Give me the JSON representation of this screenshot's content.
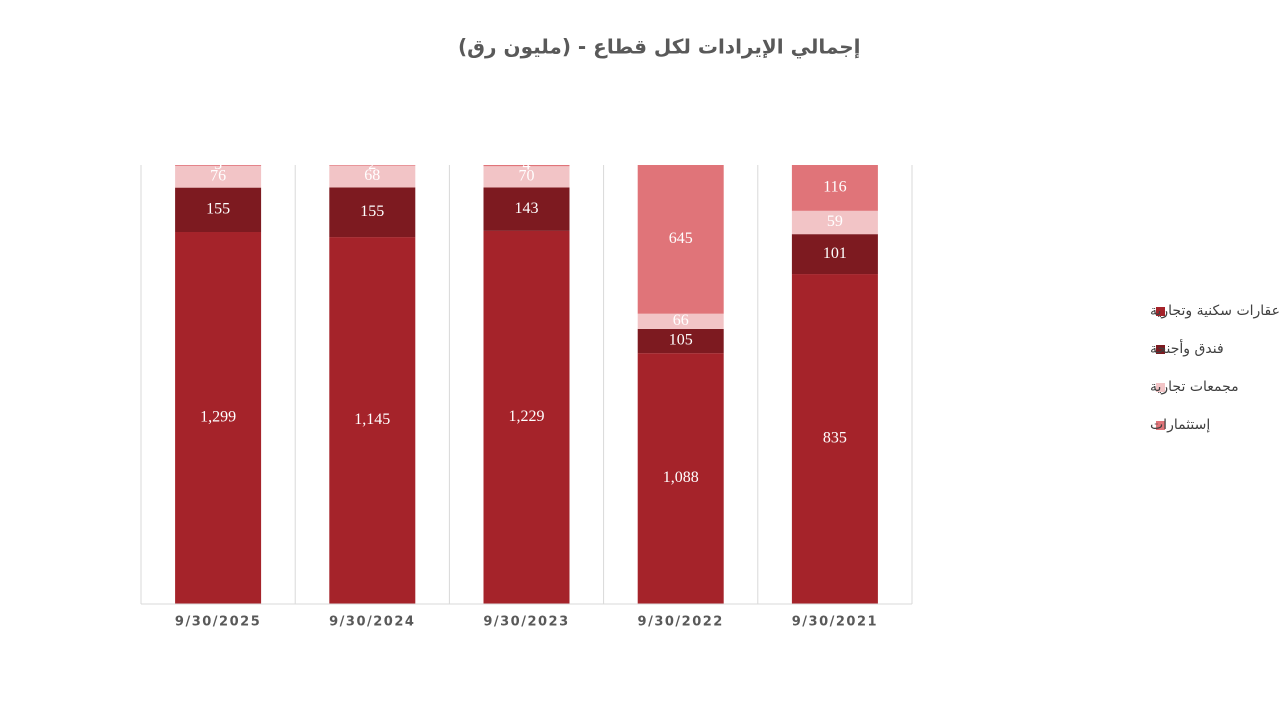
{
  "chart_data": {
    "type": "stacked_bar_100",
    "title": "إجمالي الإيرادات لكل قطاع - (مليون رق)",
    "categories": [
      "9/30/2025",
      "9/30/2024",
      "9/30/2023",
      "9/30/2022",
      "9/30/2021"
    ],
    "series": [
      {
        "name": "عقارات سكنية وتجارية",
        "color": "#a5232a",
        "values": [
          1299,
          1145,
          1229,
          1088,
          835
        ],
        "value_labels": [
          "1,299",
          "1,145",
          "1,229",
          "1,088",
          "835"
        ]
      },
      {
        "name": "فندق وأجنحة",
        "color": "#7d1a20",
        "values": [
          155,
          155,
          143,
          105,
          101
        ]
      },
      {
        "name": "مجمعات تجارية",
        "color": "#f2c4c6",
        "values": [
          76,
          68,
          70,
          66,
          59
        ]
      },
      {
        "name": "إستثمارات",
        "color": "#e07479",
        "values": [
          3,
          2,
          4,
          645,
          116
        ]
      }
    ],
    "legend": "right"
  }
}
